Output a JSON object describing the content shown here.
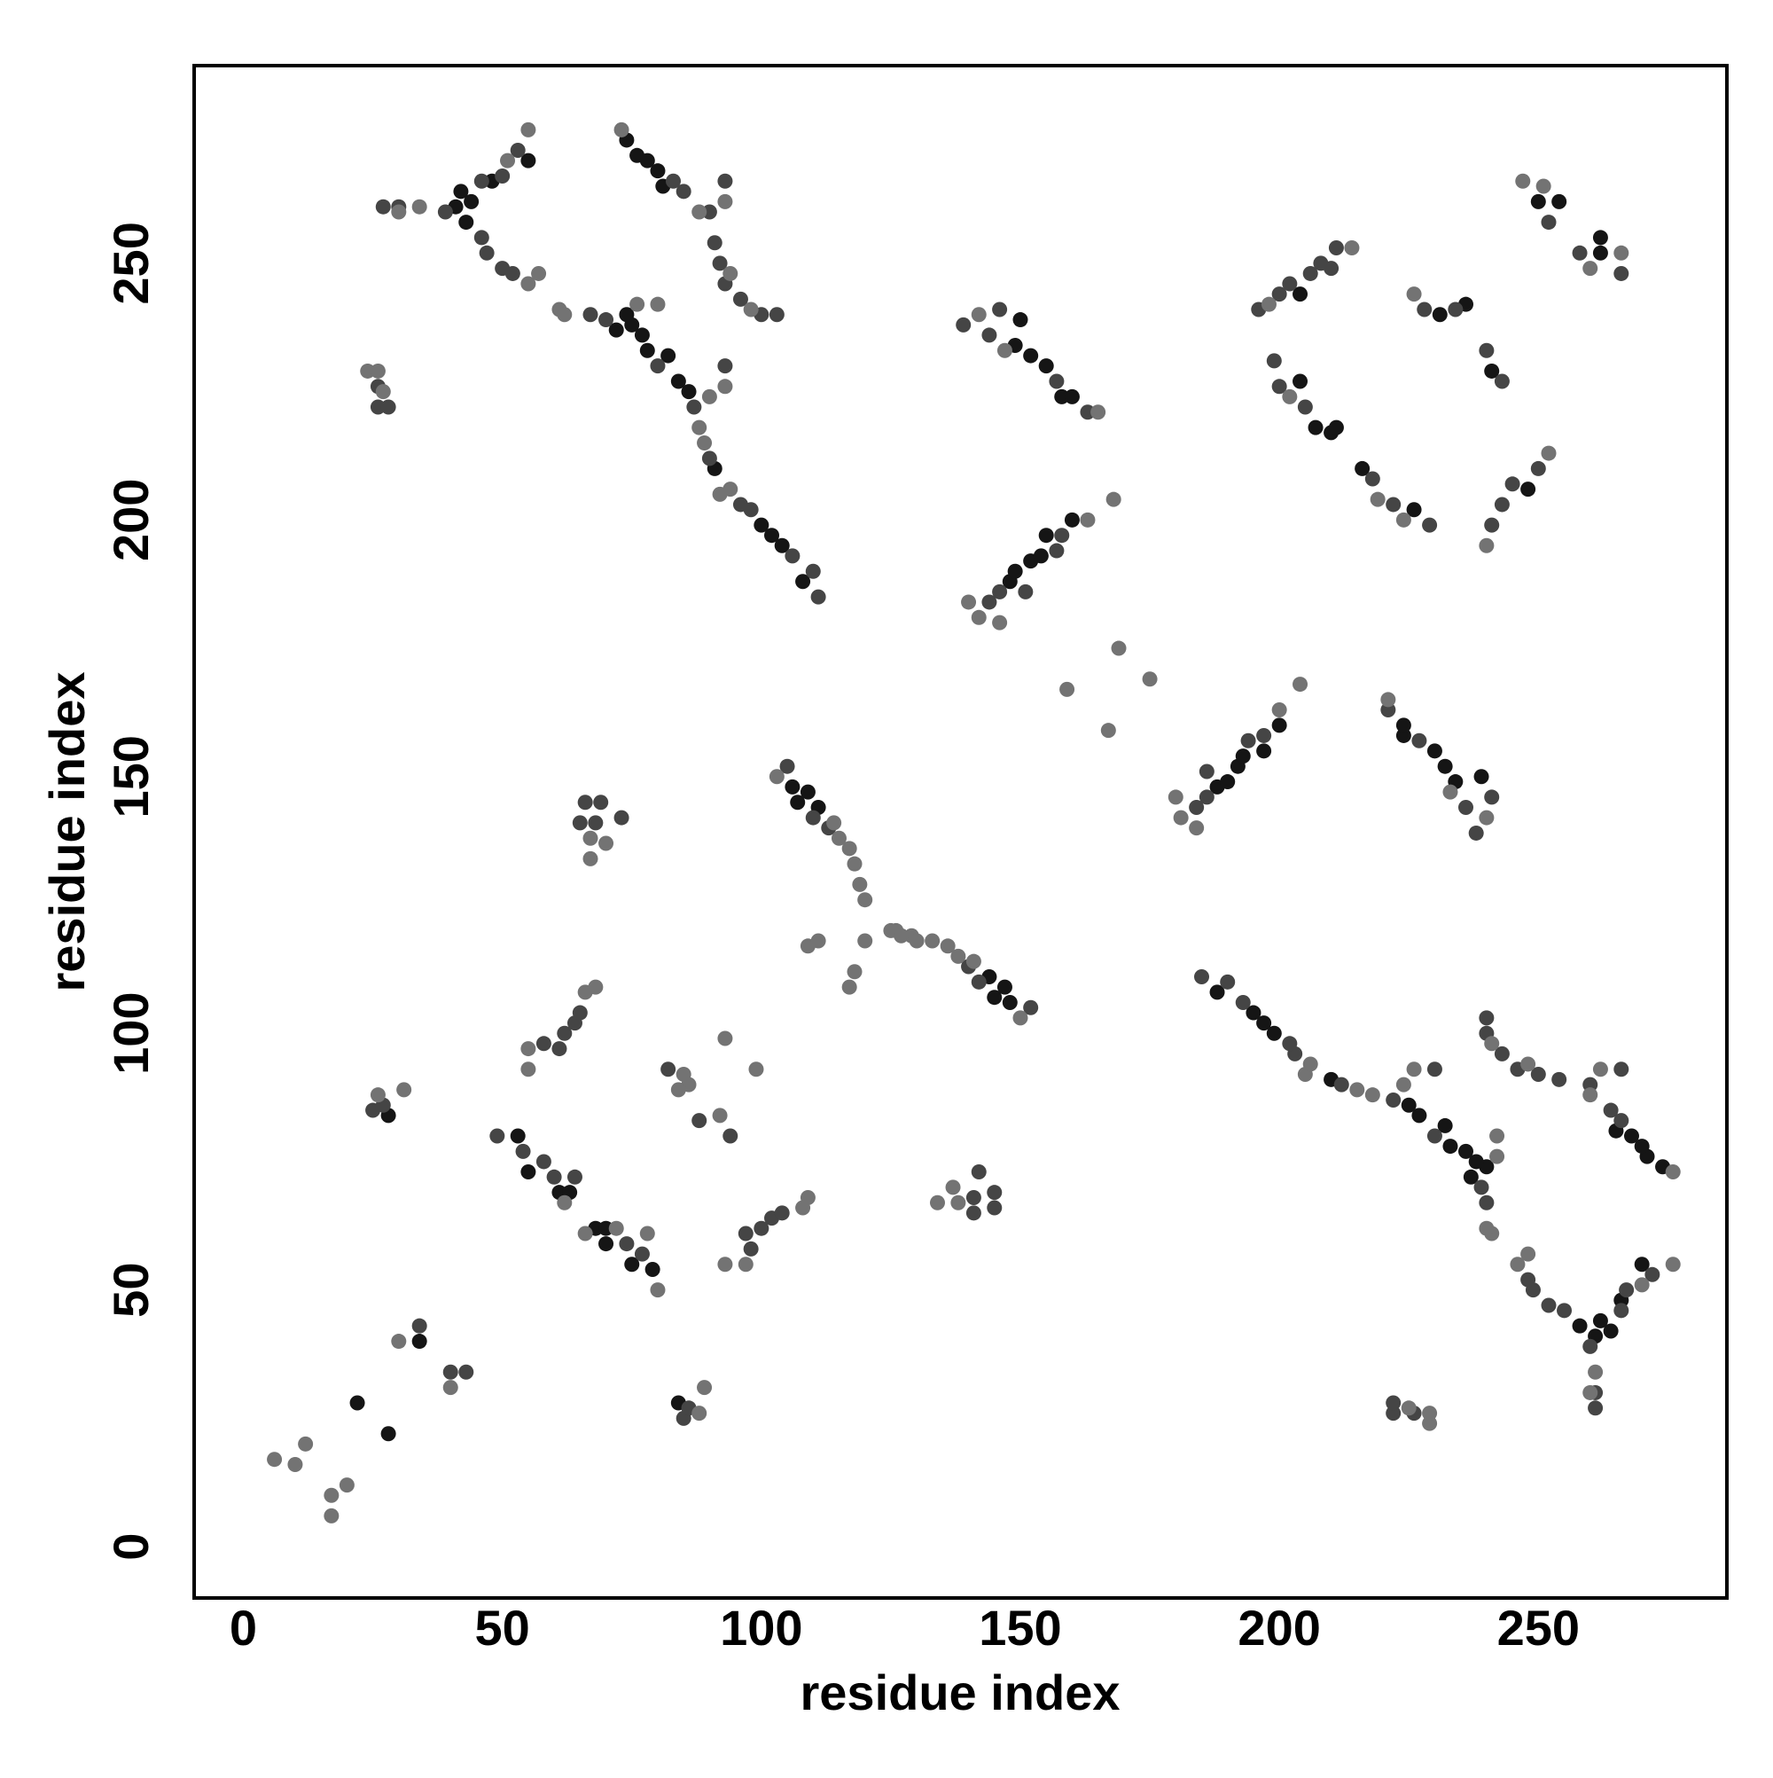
{
  "chart_data": {
    "type": "scatter",
    "x_label": "residue index",
    "y_label": "residue index",
    "xlim": [
      -9.5,
      286.4
    ],
    "ylim": [
      -10,
      288.5
    ],
    "xticks": [
      0,
      50,
      100,
      150,
      200,
      250
    ],
    "yticks": [
      0,
      50,
      100,
      150,
      200,
      250
    ],
    "grid": false,
    "series": [
      {
        "color": "#151515",
        "x": [
          41,
          42,
          44,
          48,
          55,
          43,
          74,
          76,
          78,
          80,
          81,
          72,
          74,
          75,
          77,
          78,
          82,
          84,
          86,
          91,
          100,
          102,
          104,
          108,
          149,
          150,
          152,
          155,
          158,
          160,
          148,
          149,
          152,
          154,
          155,
          160,
          106,
          107,
          109,
          111,
          28,
          261,
          264,
          262,
          266,
          270,
          258,
          274,
          271,
          270,
          268,
          265,
          237,
          240,
          238,
          236,
          233,
          232,
          227,
          225,
          210,
          199,
          197,
          195,
          188,
          234,
          239,
          232,
          230,
          224,
          224,
          188,
          190,
          192,
          193,
          197,
          200,
          148,
          145,
          147,
          144,
          84,
          22,
          28,
          34,
          204,
          204,
          207,
          210,
          211,
          216,
          226,
          231,
          236,
          241,
          248,
          250,
          254,
          262,
          262,
          53,
          55,
          61,
          63,
          68,
          70,
          70,
          75,
          79
        ],
        "y": [
          261,
          264,
          262,
          266,
          270,
          258,
          274,
          271,
          270,
          268,
          265,
          237,
          240,
          238,
          236,
          233,
          232,
          227,
          225,
          210,
          199,
          197,
          195,
          188,
          234,
          239,
          232,
          230,
          224,
          224,
          188,
          190,
          192,
          193,
          197,
          200,
          148,
          145,
          147,
          144,
          84,
          41,
          42,
          44,
          48,
          55,
          43,
          74,
          76,
          78,
          80,
          81,
          72,
          74,
          75,
          77,
          78,
          82,
          84,
          86,
          91,
          100,
          102,
          104,
          108,
          149,
          150,
          152,
          155,
          158,
          160,
          148,
          149,
          152,
          154,
          155,
          160,
          106,
          107,
          109,
          111,
          28,
          28,
          22,
          40,
          244,
          227,
          218,
          217,
          218,
          210,
          202,
          240,
          242,
          229,
          206,
          262,
          262,
          252,
          255,
          80,
          73,
          69,
          69,
          62,
          62,
          59,
          55,
          54
        ]
      },
      {
        "color": "#454545",
        "x": [
          27,
          30,
          39,
          46,
          50,
          53,
          46,
          47,
          50,
          52,
          67,
          83,
          85,
          90,
          91,
          92,
          93,
          96,
          100,
          103,
          93,
          70,
          80,
          87,
          90,
          96,
          98,
          106,
          110,
          111,
          93,
          26,
          26,
          28,
          139,
          144,
          146,
          157,
          163,
          144,
          146,
          151,
          157,
          158,
          105,
          110,
          113,
          65,
          66,
          68,
          69,
          73,
          58,
          61,
          62,
          64,
          65,
          25,
          27,
          261,
          261,
          260,
          266,
          267,
          272,
          255,
          252,
          249,
          248,
          240,
          266,
          264,
          260,
          254,
          250,
          246,
          243,
          240,
          240,
          266,
          239,
          230,
          222,
          212,
          203,
          202,
          193,
          190,
          185,
          230,
          226,
          222,
          222,
          238,
          236,
          241,
          227,
          221,
          184,
          186,
          186,
          194,
          197,
          152,
          142,
          140,
          141,
          145,
          141,
          145,
          142,
          98,
          97,
          100,
          102,
          104,
          85,
          86,
          34,
          40,
          43,
          196,
          200,
          202,
          206,
          208,
          210,
          211,
          199,
          200,
          205,
          218,
          222,
          229,
          228,
          234,
          240,
          243,
          241,
          243,
          245,
          250,
          252,
          258,
          266,
          49,
          54,
          58,
          60,
          64,
          74,
          77,
          82,
          88,
          94
        ],
        "y": [
          261,
          261,
          260,
          266,
          267,
          272,
          255,
          252,
          249,
          248,
          240,
          266,
          264,
          260,
          254,
          250,
          246,
          243,
          240,
          240,
          266,
          239,
          230,
          222,
          212,
          203,
          202,
          193,
          190,
          185,
          230,
          226,
          222,
          222,
          238,
          236,
          241,
          227,
          221,
          184,
          186,
          186,
          194,
          197,
          152,
          142,
          140,
          141,
          145,
          141,
          145,
          142,
          98,
          97,
          100,
          102,
          104,
          85,
          86,
          27,
          30,
          39,
          46,
          50,
          53,
          46,
          47,
          50,
          52,
          67,
          83,
          85,
          90,
          91,
          92,
          93,
          96,
          100,
          103,
          93,
          70,
          80,
          87,
          90,
          96,
          98,
          106,
          110,
          111,
          93,
          26,
          26,
          28,
          139,
          144,
          146,
          157,
          163,
          144,
          146,
          151,
          157,
          158,
          105,
          110,
          113,
          65,
          66,
          68,
          69,
          73,
          58,
          61,
          62,
          64,
          65,
          25,
          27,
          43,
          34,
          34,
          241,
          244,
          246,
          248,
          250,
          249,
          253,
          231,
          226,
          222,
          208,
          203,
          199,
          241,
          241,
          233,
          227,
          199,
          203,
          207,
          210,
          258,
          252,
          248,
          80,
          77,
          75,
          72,
          72,
          59,
          57,
          93,
          83,
          80
        ]
      },
      {
        "color": "#737373",
        "x": [
          30,
          34,
          51,
          55,
          55,
          57,
          61,
          62,
          73,
          88,
          94,
          98,
          93,
          88,
          89,
          92,
          94,
          90,
          93,
          76,
          80,
          24,
          26,
          27,
          142,
          147,
          165,
          140,
          142,
          146,
          163,
          168,
          103,
          115,
          117,
          118,
          119,
          120,
          114,
          67,
          70,
          67,
          55,
          55,
          66,
          68,
          26,
          31,
          260,
          261,
          270,
          276,
          246,
          248,
          241,
          240,
          276,
          260,
          248,
          241,
          262,
          218,
          215,
          205,
          206,
          224,
          226,
          242,
          242,
          229,
          229,
          225,
          240,
          233,
          221,
          184,
          181,
          180,
          200,
          204,
          150,
          138,
          136,
          133,
          129,
          126,
          141,
          138,
          137,
          134,
          93,
          97,
          108,
          109,
          88,
          89,
          6,
          17,
          10,
          17,
          12,
          20,
          30,
          40,
          109,
          111,
          117,
          118,
          120,
          125,
          127,
          130,
          159,
          167,
          169,
          175,
          198,
          214,
          202,
          219,
          224,
          226,
          240,
          252,
          247,
          251,
          260,
          266,
          62,
          66,
          72,
          80,
          78,
          85,
          86,
          84,
          92,
          93,
          99
        ],
        "y": [
          260,
          261,
          270,
          276,
          246,
          248,
          241,
          240,
          276,
          260,
          248,
          241,
          262,
          218,
          215,
          205,
          206,
          224,
          226,
          242,
          242,
          229,
          229,
          225,
          240,
          233,
          221,
          184,
          181,
          180,
          200,
          204,
          150,
          138,
          136,
          133,
          129,
          126,
          141,
          138,
          137,
          134,
          93,
          97,
          108,
          109,
          88,
          89,
          30,
          34,
          51,
          55,
          55,
          57,
          61,
          62,
          73,
          88,
          94,
          98,
          93,
          88,
          89,
          92,
          94,
          90,
          93,
          76,
          80,
          24,
          26,
          27,
          142,
          147,
          165,
          140,
          142,
          146,
          163,
          168,
          103,
          115,
          117,
          118,
          119,
          120,
          114,
          67,
          70,
          67,
          55,
          55,
          66,
          68,
          26,
          31,
          17,
          6,
          16,
          10,
          20,
          12,
          40,
          31,
          117,
          118,
          109,
          112,
          118,
          120,
          119,
          118,
          167,
          159,
          175,
          169,
          242,
          253,
          224,
          204,
          200,
          244,
          195,
          213,
          266,
          265,
          249,
          252,
          67,
          61,
          62,
          50,
          61,
          92,
          90,
          89,
          84,
          99,
          93
        ]
      }
    ]
  }
}
